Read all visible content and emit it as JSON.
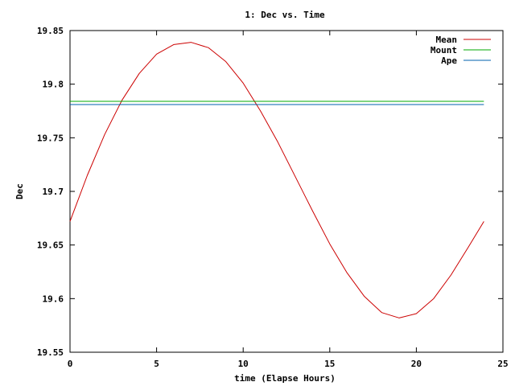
{
  "chart_data": {
    "type": "line",
    "title": "1: Dec vs. Time",
    "xlabel": "time (Elapse Hours)",
    "ylabel": "Dec",
    "xlim": [
      0,
      25
    ],
    "ylim": [
      19.55,
      19.85
    ],
    "xticks": [
      "0",
      "5",
      "10",
      "15",
      "20",
      "25"
    ],
    "yticks": [
      "19.55",
      "19.6",
      "19.65",
      "19.7",
      "19.75",
      "19.8",
      "19.85"
    ],
    "grid": false,
    "legend_position": "top-right",
    "series": [
      {
        "name": "Mean",
        "color": "#cc0000",
        "x": [
          0,
          1,
          2,
          3,
          4,
          5,
          6,
          7,
          8,
          9,
          10,
          11,
          12,
          13,
          14,
          15,
          16,
          17,
          18,
          19,
          20,
          21,
          22,
          23,
          23.9
        ],
        "y": [
          19.672,
          19.715,
          19.753,
          19.785,
          19.81,
          19.828,
          19.837,
          19.839,
          19.834,
          19.821,
          19.801,
          19.775,
          19.746,
          19.714,
          19.682,
          19.651,
          19.624,
          19.602,
          19.587,
          19.582,
          19.586,
          19.6,
          19.622,
          19.648,
          19.672
        ]
      },
      {
        "name": "Mount",
        "color": "#00aa00",
        "x": [
          0,
          23.9
        ],
        "y": [
          19.784,
          19.784
        ]
      },
      {
        "name": "Ape",
        "color": "#0060ad",
        "x": [
          0,
          23.9
        ],
        "y": [
          19.781,
          19.781
        ]
      }
    ]
  }
}
